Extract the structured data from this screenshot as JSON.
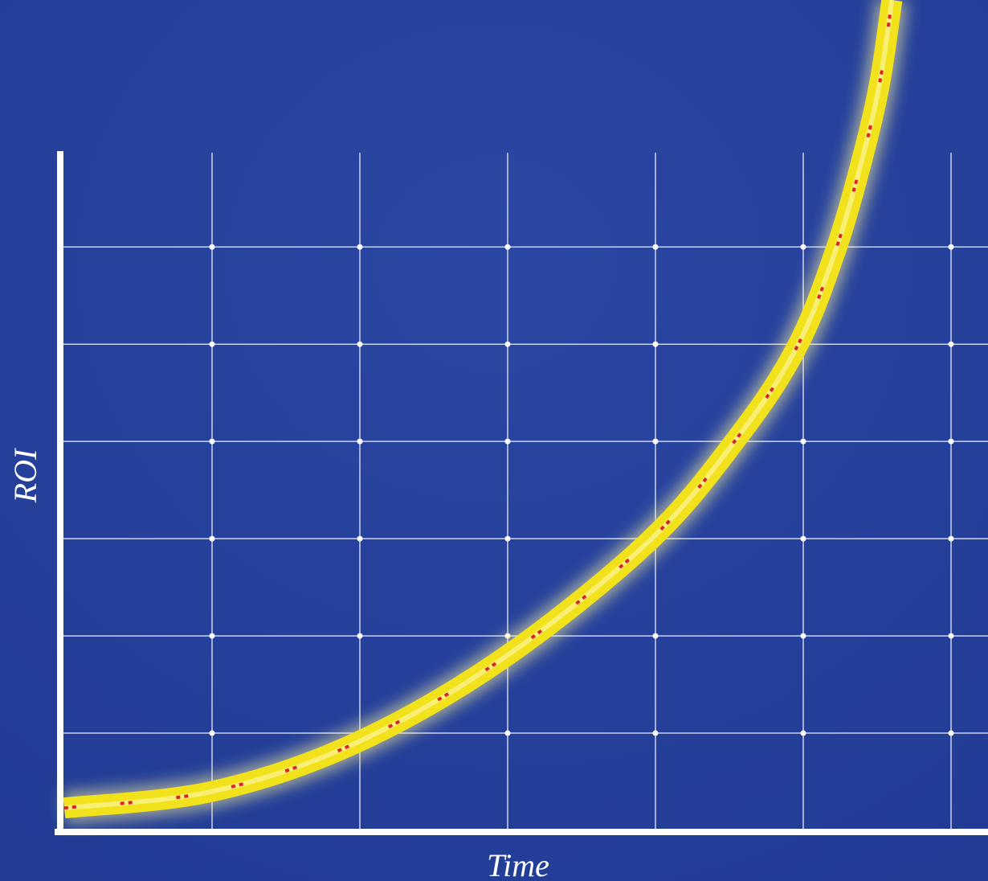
{
  "chart_data": {
    "type": "line",
    "x_label": "Time",
    "y_label": "ROI",
    "x": [
      0,
      1,
      1.96,
      2.96,
      3.96,
      4.57,
      4.96,
      5.22,
      5.41,
      5.52,
      5.6
    ],
    "values": [
      0.23,
      0.4,
      0.89,
      1.76,
      2.98,
      4.07,
      4.98,
      5.97,
      6.97,
      7.71,
      8.54
    ],
    "color": "#f2e21c",
    "xlim": [
      0,
      6.25
    ],
    "ylim": [
      0,
      8.54
    ],
    "xticks": [
      1,
      2,
      3,
      4,
      5,
      6
    ],
    "yticks": [
      1,
      2,
      3,
      4,
      5,
      6
    ],
    "grid": true
  }
}
